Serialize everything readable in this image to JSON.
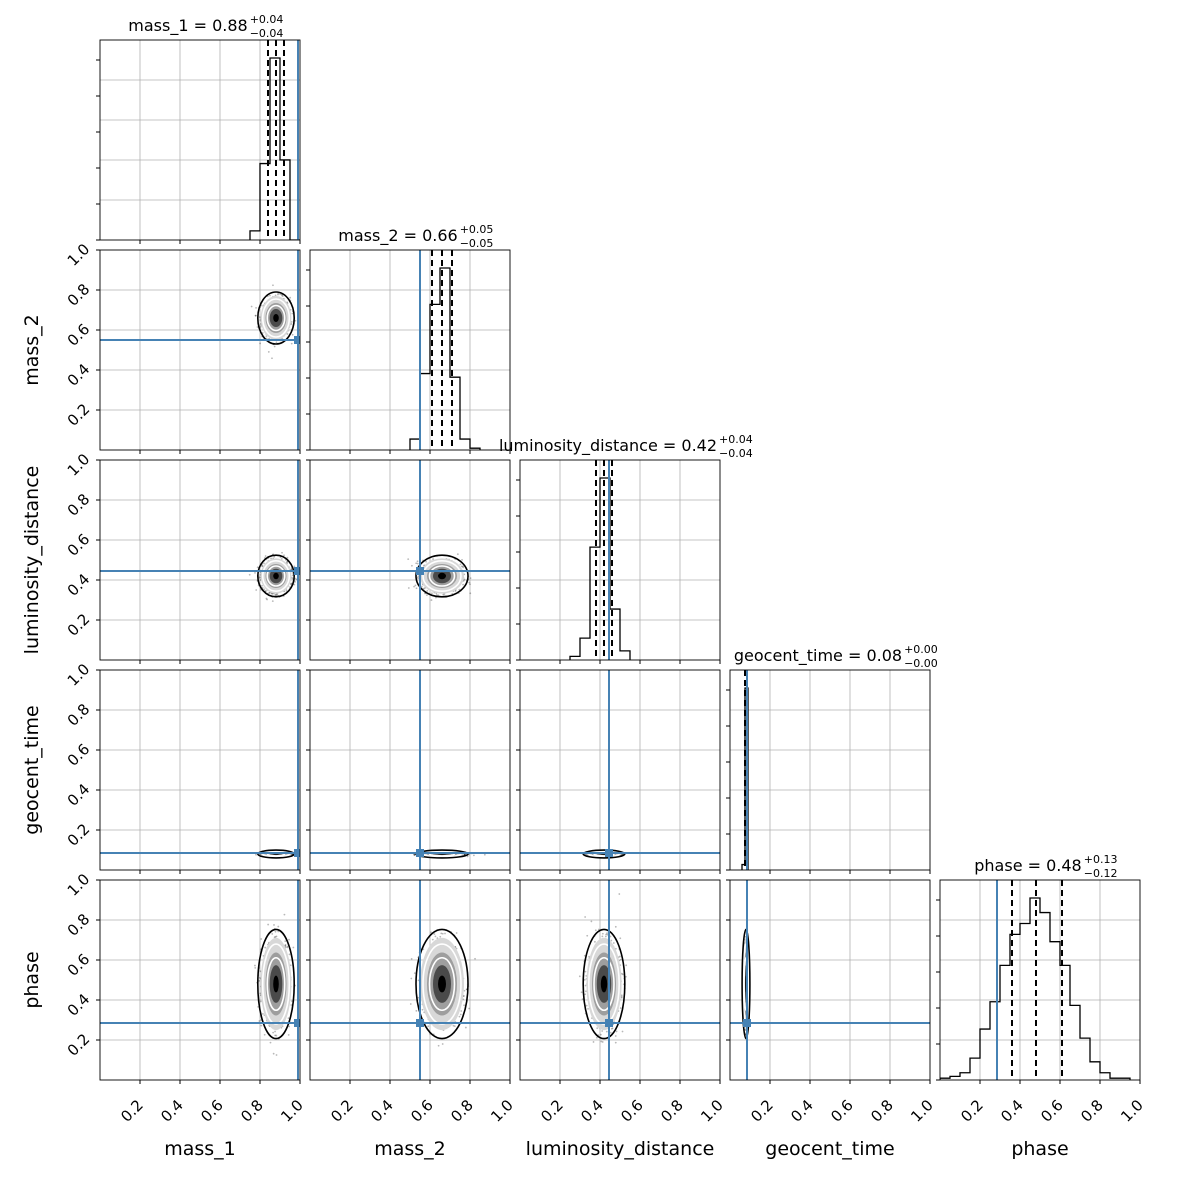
{
  "chart_data": {
    "type": "corner",
    "parameters": [
      "mass_1",
      "mass_2",
      "luminosity_distance",
      "geocent_time",
      "phase"
    ],
    "axis_labels": [
      "mass_1",
      "mass_2",
      "luminosity_distance",
      "geocent_time",
      "phase"
    ],
    "range": [
      0,
      1
    ],
    "tick_values": [
      0.2,
      0.4,
      0.6,
      0.8,
      1.0
    ],
    "tick_labels": [
      "0.2",
      "0.4",
      "0.6",
      "0.8",
      "1.0"
    ],
    "grid": true,
    "colors": {
      "truth": "#4682b4",
      "hist": "#000000",
      "grid": "#b0b0b0",
      "quantile": "#000000"
    },
    "titles": [
      {
        "param": "mass_1",
        "text": "mass_1 = 0.88",
        "sup": "+0.04",
        "sub": "−0.04"
      },
      {
        "param": "mass_2",
        "text": "mass_2 = 0.66",
        "sup": "+0.05",
        "sub": "−0.05"
      },
      {
        "param": "luminosity_distance",
        "text": "luminosity_distance = 0.42",
        "sup": "+0.04",
        "sub": "−0.04"
      },
      {
        "param": "geocent_time",
        "text": "geocent_time = 0.08",
        "sup": "+0.00",
        "sub": "−0.00"
      },
      {
        "param": "phase",
        "text": "phase = 0.48",
        "sup": "+0.13",
        "sub": "−0.12"
      }
    ],
    "truths": [
      0.99,
      0.55,
      0.445,
      0.085,
      0.285
    ],
    "posterior": {
      "median": [
        0.88,
        0.66,
        0.42,
        0.08,
        0.48
      ],
      "sigma": [
        0.035,
        0.05,
        0.04,
        0.004,
        0.105
      ],
      "quantiles": [
        [
          0.84,
          0.88,
          0.92
        ],
        [
          0.61,
          0.66,
          0.71
        ],
        [
          0.38,
          0.42,
          0.46
        ],
        [
          0.075,
          0.08,
          0.085
        ],
        [
          0.36,
          0.48,
          0.61
        ]
      ]
    },
    "histograms": [
      {
        "param": "mass_1",
        "bin_edges": [
          0.75,
          0.8,
          0.85,
          0.9,
          0.95,
          1.0
        ],
        "counts": [
          0.05,
          0.42,
          1.0,
          0.44,
          0.0
        ]
      },
      {
        "param": "mass_2",
        "bin_edges": [
          0.5,
          0.55,
          0.6,
          0.65,
          0.7,
          0.75,
          0.8,
          0.85
        ],
        "counts": [
          0.06,
          0.42,
          0.8,
          1.0,
          0.4,
          0.06,
          0.01
        ]
      },
      {
        "param": "luminosity_distance",
        "bin_edges": [
          0.25,
          0.3,
          0.35,
          0.4,
          0.45,
          0.5,
          0.55
        ],
        "counts": [
          0.02,
          0.12,
          0.62,
          1.0,
          0.28,
          0.05
        ]
      },
      {
        "param": "geocent_time",
        "bin_edges": [
          0.06,
          0.075,
          0.09
        ],
        "counts": [
          0.03,
          1.0
        ]
      },
      {
        "param": "phase",
        "bin_edges": [
          0.0,
          0.05,
          0.1,
          0.15,
          0.2,
          0.25,
          0.3,
          0.35,
          0.4,
          0.45,
          0.5,
          0.55,
          0.6,
          0.65,
          0.7,
          0.75,
          0.8,
          0.85,
          0.9,
          0.95
        ],
        "counts": [
          0.01,
          0.02,
          0.04,
          0.12,
          0.28,
          0.43,
          0.63,
          0.8,
          0.86,
          1.0,
          0.92,
          0.76,
          0.63,
          0.41,
          0.23,
          0.1,
          0.04,
          0.01,
          0.01
        ]
      }
    ]
  }
}
